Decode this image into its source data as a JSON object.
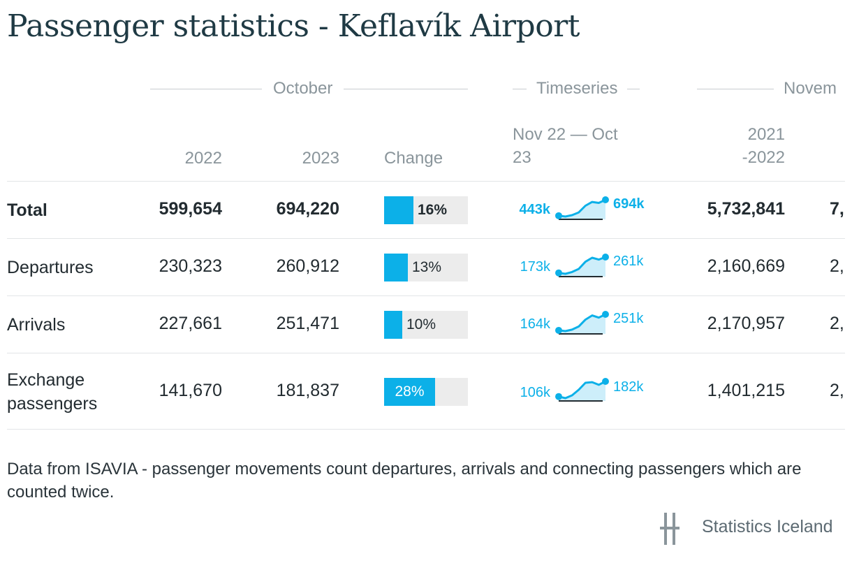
{
  "title": "Passenger statistics - Keflavík Airport",
  "groups": {
    "october": "October",
    "timeseries": "Timeseries",
    "november": "Novem"
  },
  "headers": {
    "y2022": "2022",
    "y2023": "2023",
    "change": "Change",
    "timeseries_line1": "Nov 22 — Oct",
    "timeseries_line2": "23",
    "period_line1": "2021",
    "period_line2": "-2022"
  },
  "colors": {
    "accent": "#0cb0e8",
    "bar_track": "#ececec",
    "text": "#222b30",
    "muted": "#8a959b"
  },
  "rows": [
    {
      "label": "Total",
      "label2": "",
      "bold": true,
      "v2022": "599,654",
      "v2023": "694,220",
      "change_pct": 16,
      "change_label": "16%",
      "spark_start": "443k",
      "spark_end": "694k",
      "period": "5,732,841",
      "next": "7,"
    },
    {
      "label": "Departures",
      "label2": "",
      "bold": false,
      "v2022": "230,323",
      "v2023": "260,912",
      "change_pct": 13,
      "change_label": "13%",
      "spark_start": "173k",
      "spark_end": "261k",
      "period": "2,160,669",
      "next": "2,"
    },
    {
      "label": "Arrivals",
      "label2": "",
      "bold": false,
      "v2022": "227,661",
      "v2023": "251,471",
      "change_pct": 10,
      "change_label": "10%",
      "spark_start": "164k",
      "spark_end": "251k",
      "period": "2,170,957",
      "next": "2,"
    },
    {
      "label": "Exchange",
      "label2": "passengers",
      "bold": false,
      "v2022": "141,670",
      "v2023": "181,837",
      "change_pct": 28,
      "change_label": "28%",
      "spark_start": "106k",
      "spark_end": "182k",
      "period": "1,401,215",
      "next": "2,"
    }
  ],
  "chart_data": {
    "type": "table",
    "title": "Passenger statistics - Keflavík Airport",
    "columns": [
      "2022",
      "2023",
      "Change",
      "Nov 22 — Oct 23",
      "2021-2022"
    ],
    "rows": [
      {
        "name": "Total",
        "2022": 599654,
        "2023": 694220,
        "change_pct": 16,
        "series": [
          443,
          430,
          452,
          495,
          600,
          660,
          645,
          694
        ],
        "series_start_label": "443k",
        "series_end_label": "694k",
        "period_2021_2022": 5732841
      },
      {
        "name": "Departures",
        "2022": 230323,
        "2023": 260912,
        "change_pct": 13,
        "series": [
          173,
          168,
          178,
          195,
          235,
          257,
          247,
          261
        ],
        "series_start_label": "173k",
        "series_end_label": "261k",
        "period_2021_2022": 2160669
      },
      {
        "name": "Arrivals",
        "2022": 227661,
        "2023": 251471,
        "change_pct": 10,
        "series": [
          164,
          160,
          168,
          185,
          222,
          245,
          233,
          251
        ],
        "series_start_label": "164k",
        "series_end_label": "251k",
        "period_2021_2022": 2170957
      },
      {
        "name": "Exchange passengers",
        "2022": 141670,
        "2023": 181837,
        "change_pct": 28,
        "series": [
          106,
          98,
          112,
          140,
          175,
          178,
          165,
          182
        ],
        "series_start_label": "106k",
        "series_end_label": "182k",
        "period_2021_2022": 1401215
      }
    ]
  },
  "footnote": "Data from ISAVIA - passenger movements count departures, arrivals and connecting passengers which are counted twice.",
  "logo": {
    "text": "Statistics Iceland",
    "icon": "statistics-iceland-logo-icon"
  }
}
